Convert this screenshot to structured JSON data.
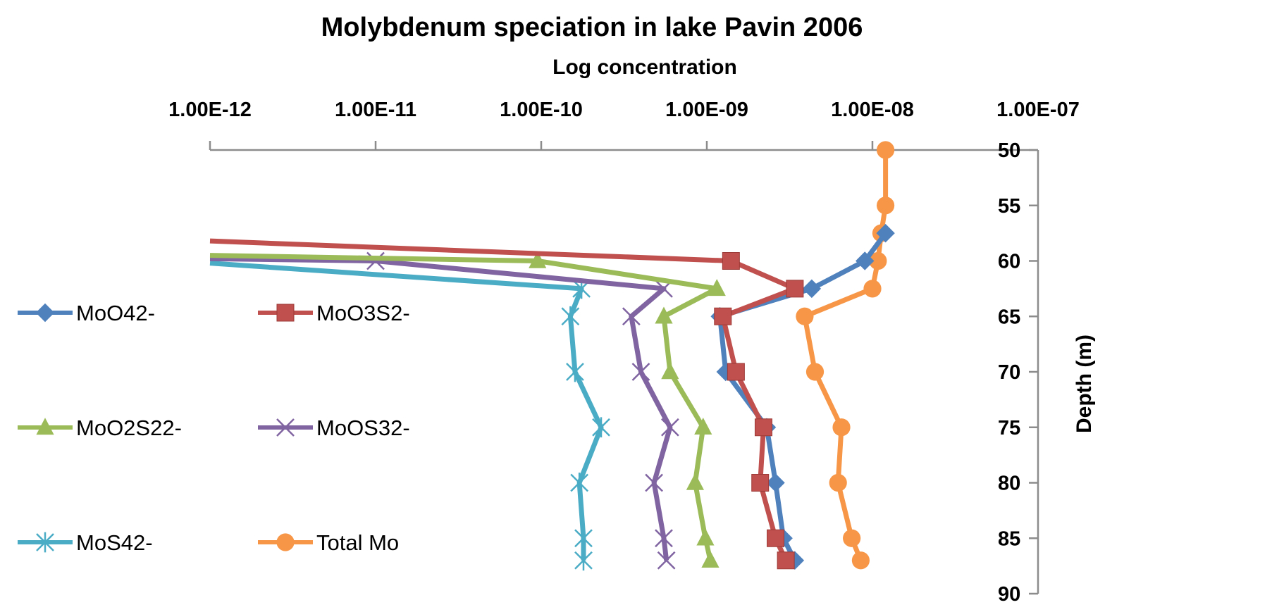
{
  "chart_data": {
    "type": "line",
    "title": "Molybdenum speciation in lake Pavin 2006",
    "xlabel": "Log concentration",
    "ylabel": "Depth (m)",
    "x_scale": "log",
    "x_axis_position": "top",
    "y_axis_position": "right",
    "y_reversed": true,
    "xlim": [
      1e-12,
      1e-07
    ],
    "ylim": [
      50,
      90
    ],
    "x_ticks": [
      "1.00E-12",
      "1.00E-11",
      "1.00E-10",
      "1.00E-09",
      "1.00E-08",
      "1.00E-07"
    ],
    "y_ticks": [
      "50",
      "55",
      "60",
      "65",
      "70",
      "75",
      "80",
      "85",
      "90"
    ],
    "grid": false,
    "legend_position": "left",
    "series": [
      {
        "name": "MoO42-",
        "color": "#4F81BD",
        "marker": "diamond",
        "points": [
          {
            "x": 1.2e-08,
            "y": 57.5
          },
          {
            "x": 9e-09,
            "y": 60
          },
          {
            "x": 4.3e-09,
            "y": 62.5
          },
          {
            "x": 1.2e-09,
            "y": 65
          },
          {
            "x": 1.3e-09,
            "y": 70
          },
          {
            "x": 2.3e-09,
            "y": 75
          },
          {
            "x": 2.6e-09,
            "y": 80
          },
          {
            "x": 2.9e-09,
            "y": 85
          },
          {
            "x": 3.4e-09,
            "y": 87
          }
        ]
      },
      {
        "name": "MoO3S2-",
        "color": "#C0504D",
        "marker": "square",
        "points": [
          {
            "x": 1e-12,
            "y": 58.2
          },
          {
            "x": 1.4e-09,
            "y": 60
          },
          {
            "x": 3.4e-09,
            "y": 62.5
          },
          {
            "x": 1.25e-09,
            "y": 65
          },
          {
            "x": 1.5e-09,
            "y": 70
          },
          {
            "x": 2.2e-09,
            "y": 75
          },
          {
            "x": 2.1e-09,
            "y": 80
          },
          {
            "x": 2.6e-09,
            "y": 85
          },
          {
            "x": 3e-09,
            "y": 87
          }
        ]
      },
      {
        "name": "MoO2S22-",
        "color": "#9BBB59",
        "marker": "triangle",
        "points": [
          {
            "x": 1e-12,
            "y": 59.5
          },
          {
            "x": 9.5e-11,
            "y": 60
          },
          {
            "x": 1.15e-09,
            "y": 62.5
          },
          {
            "x": 5.5e-10,
            "y": 65
          },
          {
            "x": 6e-10,
            "y": 70
          },
          {
            "x": 9.5e-10,
            "y": 75
          },
          {
            "x": 8.5e-10,
            "y": 80
          },
          {
            "x": 9.8e-10,
            "y": 85
          },
          {
            "x": 1.05e-09,
            "y": 87
          }
        ]
      },
      {
        "name": "MoOS32-",
        "color": "#8064A2",
        "marker": "x",
        "points": [
          {
            "x": 1e-12,
            "y": 59.8
          },
          {
            "x": 1e-11,
            "y": 60
          },
          {
            "x": 5.5e-10,
            "y": 62.5
          },
          {
            "x": 3.5e-10,
            "y": 65
          },
          {
            "x": 4e-10,
            "y": 70
          },
          {
            "x": 6e-10,
            "y": 75
          },
          {
            "x": 4.8e-10,
            "y": 80
          },
          {
            "x": 5.5e-10,
            "y": 85
          },
          {
            "x": 5.7e-10,
            "y": 87
          }
        ]
      },
      {
        "name": "MoS42-",
        "color": "#4BACC6",
        "marker": "star",
        "points": [
          {
            "x": 1e-12,
            "y": 60.2
          },
          {
            "x": 1.75e-10,
            "y": 62.5
          },
          {
            "x": 1.5e-10,
            "y": 65
          },
          {
            "x": 1.6e-10,
            "y": 70
          },
          {
            "x": 2.3e-10,
            "y": 75
          },
          {
            "x": 1.7e-10,
            "y": 80
          },
          {
            "x": 1.8e-10,
            "y": 85
          },
          {
            "x": 1.8e-10,
            "y": 87
          }
        ]
      },
      {
        "name": "Total Mo",
        "color": "#F79646",
        "marker": "circle",
        "points": [
          {
            "x": 1.2e-08,
            "y": 50
          },
          {
            "x": 1.2e-08,
            "y": 55
          },
          {
            "x": 1.13e-08,
            "y": 57.5
          },
          {
            "x": 1.08e-08,
            "y": 60
          },
          {
            "x": 1e-08,
            "y": 62.5
          },
          {
            "x": 3.9e-09,
            "y": 65
          },
          {
            "x": 4.5e-09,
            "y": 70
          },
          {
            "x": 6.5e-09,
            "y": 75
          },
          {
            "x": 6.2e-09,
            "y": 80
          },
          {
            "x": 7.5e-09,
            "y": 85
          },
          {
            "x": 8.5e-09,
            "y": 87
          }
        ]
      }
    ]
  }
}
